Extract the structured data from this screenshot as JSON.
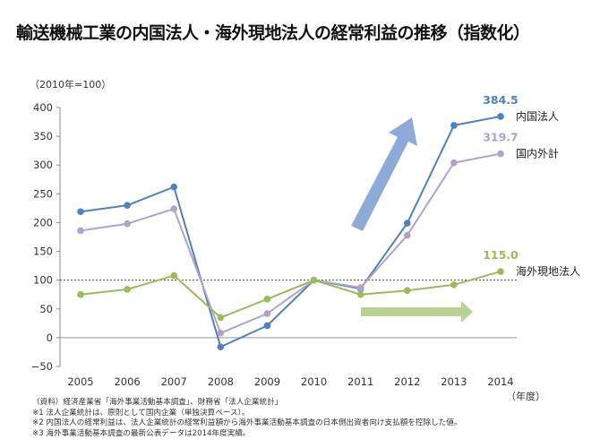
{
  "title": "輸送機械工業の内国法人・海外現地法人の経常利益の推移（指数化）",
  "chart_data": {
    "type": "line",
    "title": "輸送機械工業の内国法人・海外現地法人の経常利益の推移（指数化）",
    "unit_label": "（2010年=100）",
    "xlabel": "（年度）",
    "ylabel": "",
    "categories": [
      "2005",
      "2006",
      "2007",
      "2008",
      "2009",
      "2010",
      "2011",
      "2012",
      "2013",
      "2014"
    ],
    "ylim": [
      -50,
      400
    ],
    "yticks": [
      -50,
      0,
      50,
      100,
      150,
      200,
      250,
      300,
      350,
      400
    ],
    "ytick_labels": [
      "−50",
      "0",
      "50",
      "100",
      "150",
      "200",
      "250",
      "300",
      "350",
      "400"
    ],
    "reference_line": {
      "value": 100,
      "style": "dotted"
    },
    "grid": false,
    "series": [
      {
        "name": "内国法人",
        "color": "#4f81bd",
        "end_label": "384.5",
        "values": [
          219,
          230,
          262,
          -16,
          21,
          100,
          85,
          199,
          369,
          384.5
        ]
      },
      {
        "name": "国内外計",
        "color": "#b3a2c7",
        "end_label": "319.7",
        "values": [
          186,
          198,
          224,
          8,
          42,
          100,
          87,
          178,
          304,
          319.7
        ]
      },
      {
        "name": "海外現地法人",
        "color": "#9bbb59",
        "end_label": "115.0",
        "values": [
          75,
          84,
          108,
          35,
          67,
          100,
          75,
          82,
          92,
          115.0
        ]
      }
    ],
    "annotations": {
      "arrow_up_color": "#8eaad6",
      "arrow_right_color": "#b7d38f"
    }
  },
  "notes": [
    "（資料）経済産業省「海外事業活動基本調査」、財務省「法人企業統計」",
    "※1 法人企業統計は、原則として国内企業（単独決算ベース）。",
    "※2 内国法人の経常利益は、法人企業統計の経常利益額から海外事業活動基本調査の日本側出資者向け支払額を控除した値。",
    "※3 海外事業活動基本調査の最新公表データは2014年度実績。"
  ]
}
